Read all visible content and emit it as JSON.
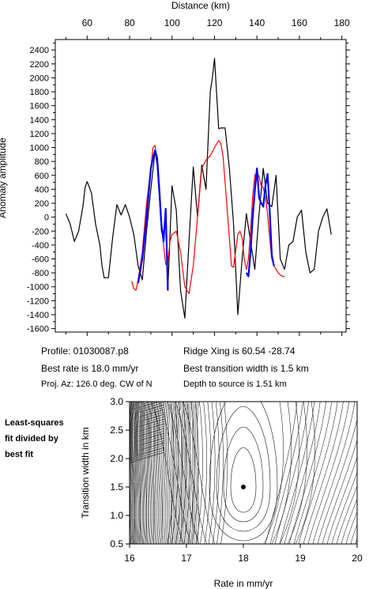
{
  "info": {
    "profile": "Profile: 01030087.p8",
    "ridge_xing": "Ridge Xing is 60.54 -28.74",
    "best_rate": "Best rate is 18.0 mm/yr",
    "best_width": "Best transition width is 1.5 km",
    "proj_az": "Proj. Az: 126.0 deg. CW of N",
    "depth": "Depth to source is   1.51 km"
  },
  "side_note": [
    "Least-squares",
    "fit divided by",
    "best fit"
  ],
  "chart_data": [
    {
      "type": "line",
      "xlabel": "Distance (km)",
      "ylabel": "Anomaly amplitude",
      "xlim": [
        45,
        182
      ],
      "ylim": [
        -1650,
        2550
      ],
      "xticks": [
        60,
        80,
        100,
        120,
        140,
        160,
        180
      ],
      "yticks": [
        -1600,
        -1400,
        -1200,
        -1000,
        -800,
        -600,
        -400,
        -200,
        0,
        200,
        400,
        600,
        800,
        1000,
        1200,
        1400,
        1600,
        1800,
        2000,
        2200,
        2400
      ],
      "series": [
        {
          "color": "#000000",
          "x": [
            50,
            52,
            54,
            56,
            58,
            59,
            60,
            62,
            64,
            66,
            67,
            68,
            70,
            72,
            74,
            76,
            78,
            80,
            82,
            84,
            86,
            88,
            90,
            92,
            93,
            94,
            95,
            96,
            97,
            98,
            100,
            102,
            104,
            106,
            108,
            110,
            112,
            114,
            116,
            118,
            119,
            120,
            122,
            123,
            125,
            127,
            129,
            131,
            133,
            135,
            137,
            139,
            141,
            143,
            145,
            147,
            149,
            151,
            153,
            155,
            157,
            159,
            161,
            163,
            165,
            167,
            169,
            171,
            173,
            175
          ],
          "y": [
            50,
            -100,
            -350,
            -200,
            150,
            420,
            510,
            350,
            -100,
            -400,
            -700,
            -870,
            -870,
            -300,
            180,
            30,
            180,
            0,
            -250,
            -700,
            -900,
            -200,
            400,
            950,
            750,
            300,
            -200,
            -300,
            100,
            -1050,
            450,
            100,
            -1050,
            -1450,
            -350,
            720,
            0,
            750,
            400,
            1800,
            2000,
            2280,
            1270,
            1280,
            1280,
            700,
            -100,
            -1400,
            -600,
            50,
            -350,
            -750,
            50,
            700,
            200,
            150,
            600,
            -600,
            -750,
            -400,
            -350,
            0,
            100,
            -500,
            -800,
            -750,
            -200,
            0,
            120,
            -250
          ]
        },
        {
          "color": "#ff0000",
          "x": [
            81,
            82,
            83,
            84,
            86,
            88,
            90,
            91,
            92,
            93,
            94,
            95,
            96,
            97,
            98,
            99,
            100,
            102,
            104,
            106,
            108,
            110,
            112,
            114,
            116,
            118,
            120,
            122,
            123,
            124,
            125,
            126,
            127,
            128,
            129,
            130,
            131,
            132,
            133,
            134,
            135,
            136,
            137,
            138,
            139,
            140,
            141,
            142,
            143,
            144,
            145,
            146,
            147,
            148,
            149,
            150,
            151,
            152,
            153
          ],
          "y": [
            -920,
            -1030,
            -1050,
            -900,
            -500,
            200,
            700,
            1000,
            1030,
            800,
            400,
            -100,
            -400,
            -680,
            -650,
            -350,
            -250,
            -200,
            -500,
            -1000,
            -1100,
            -700,
            0,
            700,
            820,
            880,
            1000,
            1100,
            1060,
            880,
            500,
            100,
            -300,
            -700,
            -720,
            -480,
            -250,
            -200,
            -300,
            -600,
            -750,
            -600,
            -200,
            300,
            600,
            650,
            580,
            450,
            420,
            300,
            50,
            -300,
            -600,
            -700,
            -750,
            -800,
            -830,
            -850,
            -850
          ]
        },
        {
          "color": "#0000ff",
          "x": [
            84,
            86,
            88,
            90,
            91,
            92,
            93,
            94,
            95,
            96,
            97,
            98
          ],
          "y": [
            -950,
            -600,
            0,
            700,
            850,
            960,
            850,
            400,
            -100,
            -350,
            120,
            -1050
          ]
        },
        {
          "color": "#0000ff",
          "x": [
            135,
            136,
            137,
            138,
            139,
            140,
            141,
            142,
            143,
            144,
            145,
            146,
            147,
            148
          ],
          "y": [
            -800,
            -850,
            -500,
            0,
            380,
            700,
            280,
            200,
            150,
            450,
            620,
            100,
            -550,
            -700
          ]
        }
      ]
    },
    {
      "type": "contour",
      "xlabel": "Rate in mm/yr",
      "ylabel": "Transition width in km",
      "xlim": [
        16,
        20
      ],
      "ylim": [
        0.5,
        3
      ],
      "xticks": [
        16,
        17,
        18,
        19,
        20
      ],
      "yticks": [
        0.5,
        1.0,
        1.5,
        2.0,
        2.5,
        3.0
      ],
      "best_fit_point": {
        "rate": 18.0,
        "width": 1.5
      }
    }
  ]
}
